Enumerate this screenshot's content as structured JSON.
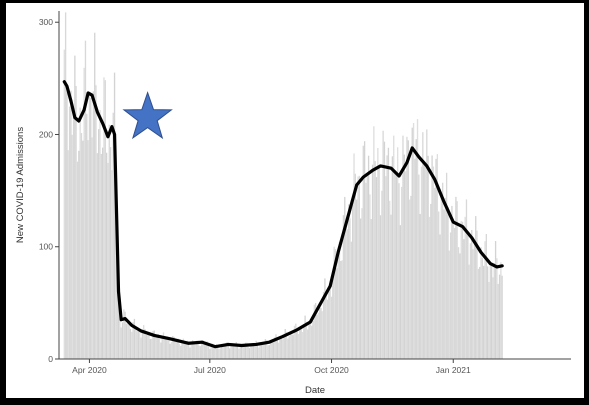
{
  "chart_data": {
    "type": "bar",
    "overlay": "line",
    "xlabel": "Date",
    "ylabel": "New COVID-19 Admissions",
    "ylim": [
      0,
      310
    ],
    "yticks": [
      0,
      100,
      200,
      300
    ],
    "xlim": [
      "2020-03-09",
      "2021-03-31"
    ],
    "xticks": [
      {
        "date": "2020-04-01",
        "label": "Apr 2020"
      },
      {
        "date": "2020-07-01",
        "label": "Jul 2020"
      },
      {
        "date": "2020-10-01",
        "label": "Oct 2020"
      },
      {
        "date": "2021-01-01",
        "label": "Jan 2021"
      }
    ],
    "start_date": "2020-03-13",
    "bar_color": "#d3d3d3",
    "line_color": "#000000",
    "grid": false,
    "line_anchors": [
      [
        "2020-03-13",
        247
      ],
      [
        "2020-03-15",
        243
      ],
      [
        "2020-03-18",
        230
      ],
      [
        "2020-03-21",
        215
      ],
      [
        "2020-03-24",
        212
      ],
      [
        "2020-03-28",
        222
      ],
      [
        "2020-03-31",
        237
      ],
      [
        "2020-04-03",
        235
      ],
      [
        "2020-04-07",
        220
      ],
      [
        "2020-04-11",
        210
      ],
      [
        "2020-04-15",
        198
      ],
      [
        "2020-04-18",
        207
      ],
      [
        "2020-04-20",
        200
      ],
      [
        "2020-04-23",
        60
      ],
      [
        "2020-04-25",
        35
      ],
      [
        "2020-04-28",
        36
      ],
      [
        "2020-05-03",
        30
      ],
      [
        "2020-05-10",
        25
      ],
      [
        "2020-05-20",
        21
      ],
      [
        "2020-06-01",
        18
      ],
      [
        "2020-06-15",
        14
      ],
      [
        "2020-06-25",
        15
      ],
      [
        "2020-07-05",
        11
      ],
      [
        "2020-07-15",
        13
      ],
      [
        "2020-07-25",
        12
      ],
      [
        "2020-08-05",
        13
      ],
      [
        "2020-08-15",
        15
      ],
      [
        "2020-08-25",
        20
      ],
      [
        "2020-09-05",
        26
      ],
      [
        "2020-09-15",
        33
      ],
      [
        "2020-09-22",
        48
      ],
      [
        "2020-09-30",
        65
      ],
      [
        "2020-10-06",
        95
      ],
      [
        "2020-10-13",
        125
      ],
      [
        "2020-10-20",
        155
      ],
      [
        "2020-10-25",
        162
      ],
      [
        "2020-11-01",
        168
      ],
      [
        "2020-11-07",
        172
      ],
      [
        "2020-11-15",
        170
      ],
      [
        "2020-11-21",
        163
      ],
      [
        "2020-11-27",
        175
      ],
      [
        "2020-12-01",
        188
      ],
      [
        "2020-12-06",
        180
      ],
      [
        "2020-12-12",
        172
      ],
      [
        "2020-12-18",
        160
      ],
      [
        "2020-12-25",
        140
      ],
      [
        "2021-01-01",
        122
      ],
      [
        "2021-01-08",
        118
      ],
      [
        "2021-01-15",
        108
      ],
      [
        "2021-01-22",
        95
      ],
      [
        "2021-01-29",
        85
      ],
      [
        "2021-02-03",
        82
      ],
      [
        "2021-02-07",
        83
      ]
    ],
    "annotation": {
      "shape": "star",
      "date": "2020-05-15",
      "value": 215,
      "color": "#4472c4"
    }
  }
}
